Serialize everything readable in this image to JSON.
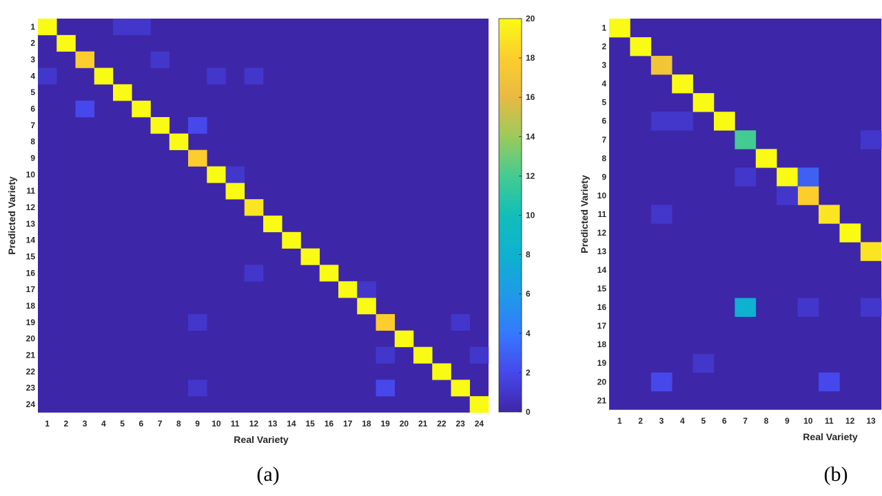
{
  "panels": [
    {
      "caption": "(a)",
      "chart_data": {
        "type": "heatmap",
        "xlabel": "Real Variety",
        "ylabel": "Predicted Variety",
        "x_categories": [
          "1",
          "2",
          "3",
          "4",
          "5",
          "6",
          "7",
          "8",
          "9",
          "10",
          "11",
          "12",
          "13",
          "14",
          "15",
          "16",
          "17",
          "18",
          "19",
          "20",
          "21",
          "22",
          "23",
          "24"
        ],
        "y_categories": [
          "1",
          "2",
          "3",
          "4",
          "5",
          "6",
          "7",
          "8",
          "9",
          "10",
          "11",
          "12",
          "13",
          "14",
          "15",
          "16",
          "17",
          "18",
          "19",
          "20",
          "21",
          "22",
          "23",
          "24"
        ],
        "color_range": [
          0,
          20
        ],
        "colorbar_ticks": [
          "0",
          "2",
          "4",
          "6",
          "8",
          "10",
          "12",
          "14",
          "16",
          "18",
          "20"
        ],
        "colormap": "parula",
        "diagonal": [
          20,
          20,
          18,
          20,
          20,
          20,
          20,
          20,
          18,
          20,
          20,
          19,
          20,
          20,
          20,
          20,
          20,
          20,
          18,
          20,
          20,
          20,
          20,
          20
        ],
        "off_diagonal": [
          {
            "x": "5",
            "y": "1",
            "value": 1
          },
          {
            "x": "6",
            "y": "1",
            "value": 1
          },
          {
            "x": "7",
            "y": "3",
            "value": 1
          },
          {
            "x": "1",
            "y": "4",
            "value": 1
          },
          {
            "x": "10",
            "y": "4",
            "value": 1
          },
          {
            "x": "12",
            "y": "4",
            "value": 1
          },
          {
            "x": "3",
            "y": "6",
            "value": 2
          },
          {
            "x": "9",
            "y": "7",
            "value": 2
          },
          {
            "x": "11",
            "y": "10",
            "value": 1
          },
          {
            "x": "12",
            "y": "16",
            "value": 1
          },
          {
            "x": "18",
            "y": "17",
            "value": 1
          },
          {
            "x": "9",
            "y": "19",
            "value": 1
          },
          {
            "x": "23",
            "y": "19",
            "value": 1
          },
          {
            "x": "19",
            "y": "21",
            "value": 1
          },
          {
            "x": "24",
            "y": "21",
            "value": 1
          },
          {
            "x": "9",
            "y": "23",
            "value": 1
          },
          {
            "x": "19",
            "y": "23",
            "value": 2
          }
        ]
      }
    },
    {
      "caption": "(b)",
      "chart_data": {
        "type": "heatmap",
        "xlabel": "Real Variety",
        "ylabel": "Predicted Variety",
        "x_categories": [
          "1",
          "2",
          "3",
          "4",
          "5",
          "6",
          "7",
          "8",
          "9",
          "10",
          "11",
          "12",
          "13"
        ],
        "y_categories": [
          "1",
          "2",
          "3",
          "4",
          "5",
          "6",
          "7",
          "8",
          "9",
          "10",
          "11",
          "12",
          "13",
          "14",
          "15",
          "16",
          "17",
          "18",
          "19",
          "20",
          "21"
        ],
        "color_range": [
          0,
          20
        ],
        "colormap": "parula",
        "diagonal": [
          20,
          20,
          17,
          20,
          20,
          20,
          12,
          20,
          20,
          18,
          19,
          20,
          19
        ],
        "off_diagonal": [
          {
            "x": "3",
            "y": "6",
            "value": 1
          },
          {
            "x": "4",
            "y": "6",
            "value": 1
          },
          {
            "x": "13",
            "y": "7",
            "value": 1
          },
          {
            "x": "7",
            "y": "9",
            "value": 1
          },
          {
            "x": "10",
            "y": "9",
            "value": 3
          },
          {
            "x": "9",
            "y": "10",
            "value": 1
          },
          {
            "x": "3",
            "y": "11",
            "value": 1
          },
          {
            "x": "7",
            "y": "16",
            "value": 8
          },
          {
            "x": "10",
            "y": "16",
            "value": 1
          },
          {
            "x": "13",
            "y": "16",
            "value": 1
          },
          {
            "x": "5",
            "y": "19",
            "value": 1
          },
          {
            "x": "3",
            "y": "20",
            "value": 2
          },
          {
            "x": "11",
            "y": "20",
            "value": 2
          }
        ]
      }
    }
  ]
}
